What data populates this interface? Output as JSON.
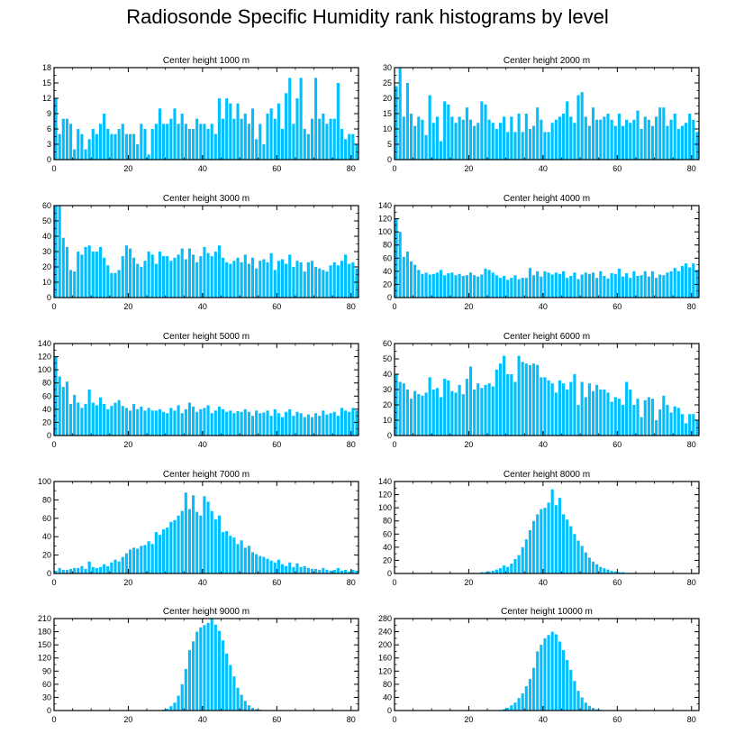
{
  "title": "Radiosonde Specific Humidity rank histograms by level",
  "bar_color": "#00bfff",
  "chart_data": [
    {
      "type": "bar",
      "title": "Center height 1000 m",
      "xlabel": "",
      "ylabel": "",
      "xlim": [
        0,
        82
      ],
      "ylim": [
        0,
        18
      ],
      "xticks": [
        0,
        20,
        40,
        60,
        80
      ],
      "yticks": [
        0,
        3,
        6,
        9,
        12,
        15,
        18
      ],
      "values": [
        12,
        5,
        8,
        8,
        7,
        2,
        6,
        5,
        2,
        4,
        6,
        5,
        7,
        9,
        6,
        5,
        5,
        6,
        7,
        5,
        5,
        5,
        3,
        7,
        6,
        1,
        6,
        7,
        10,
        7,
        7,
        8,
        10,
        7,
        9,
        7,
        6,
        6,
        8,
        7,
        7,
        6,
        7,
        5,
        12,
        8,
        12,
        11,
        8,
        11,
        8,
        9,
        7,
        10,
        4,
        7,
        3,
        9,
        10,
        8,
        11,
        6,
        13,
        16,
        7,
        12,
        16,
        6,
        5,
        8,
        16,
        8,
        9,
        7,
        8,
        8,
        15,
        6,
        4,
        5,
        5,
        3
      ]
    },
    {
      "type": "bar",
      "title": "Center height 2000 m",
      "xlabel": "",
      "ylabel": "",
      "xlim": [
        0,
        82
      ],
      "ylim": [
        0,
        30
      ],
      "xticks": [
        0,
        20,
        40,
        60,
        80
      ],
      "yticks": [
        0,
        5,
        10,
        15,
        20,
        25,
        30
      ],
      "values": [
        24,
        30,
        14,
        25,
        15,
        11,
        14,
        13,
        8,
        21,
        12,
        14,
        6,
        19,
        18,
        14,
        12,
        14,
        13,
        17,
        13,
        11,
        12,
        19,
        18,
        13,
        12,
        10,
        12,
        14,
        9,
        14,
        9,
        15,
        9,
        15,
        10,
        11,
        17,
        13,
        9,
        9,
        12,
        13,
        14,
        15,
        19,
        14,
        12,
        21,
        22,
        14,
        11,
        17,
        13,
        13,
        14,
        15,
        13,
        11,
        15,
        11,
        13,
        12,
        13,
        16,
        10,
        14,
        13,
        11,
        14,
        17,
        17,
        11,
        13,
        15,
        10,
        11,
        12,
        15,
        13,
        9
      ]
    },
    {
      "type": "bar",
      "title": "Center height 3000 m",
      "xlabel": "",
      "ylabel": "",
      "xlim": [
        0,
        82
      ],
      "ylim": [
        0,
        60
      ],
      "xticks": [
        0,
        20,
        40,
        60,
        80
      ],
      "yticks": [
        0,
        10,
        20,
        30,
        40,
        50,
        60
      ],
      "values": [
        60,
        60,
        39,
        33,
        18,
        17,
        30,
        28,
        33,
        34,
        30,
        30,
        33,
        26,
        21,
        16,
        16,
        18,
        27,
        34,
        32,
        26,
        22,
        20,
        24,
        30,
        28,
        22,
        30,
        27,
        27,
        24,
        26,
        28,
        32,
        25,
        32,
        28,
        23,
        27,
        33,
        29,
        27,
        30,
        34,
        26,
        23,
        22,
        24,
        26,
        23,
        28,
        22,
        26,
        19,
        24,
        25,
        23,
        29,
        18,
        24,
        25,
        22,
        28,
        20,
        24,
        23,
        17,
        23,
        24,
        20,
        19,
        18,
        17,
        21,
        23,
        21,
        24,
        28,
        22,
        23,
        19
      ]
    },
    {
      "type": "bar",
      "title": "Center height 4000 m",
      "xlabel": "",
      "ylabel": "",
      "xlim": [
        0,
        82
      ],
      "ylim": [
        0,
        140
      ],
      "xticks": [
        0,
        20,
        40,
        60,
        80
      ],
      "yticks": [
        0,
        20,
        40,
        60,
        80,
        100,
        120,
        140
      ],
      "values": [
        120,
        100,
        62,
        70,
        55,
        50,
        42,
        36,
        38,
        35,
        36,
        38,
        42,
        34,
        37,
        38,
        34,
        36,
        33,
        34,
        38,
        34,
        32,
        35,
        44,
        42,
        38,
        34,
        30,
        33,
        27,
        30,
        34,
        28,
        30,
        30,
        45,
        34,
        40,
        32,
        40,
        38,
        35,
        38,
        36,
        40,
        30,
        33,
        38,
        28,
        35,
        38,
        36,
        38,
        30,
        40,
        33,
        29,
        37,
        36,
        44,
        32,
        37,
        30,
        40,
        33,
        34,
        40,
        32,
        40,
        30,
        35,
        34,
        38,
        40,
        45,
        40,
        48,
        52,
        46,
        52,
        42
      ]
    },
    {
      "type": "bar",
      "title": "Center height 5000 m",
      "xlabel": "",
      "ylabel": "",
      "xlim": [
        0,
        82
      ],
      "ylim": [
        0,
        140
      ],
      "xticks": [
        0,
        20,
        40,
        60,
        80
      ],
      "yticks": [
        0,
        20,
        40,
        60,
        80,
        100,
        120,
        140
      ],
      "values": [
        120,
        90,
        74,
        82,
        48,
        62,
        50,
        42,
        48,
        70,
        50,
        46,
        58,
        48,
        40,
        45,
        50,
        54,
        45,
        42,
        38,
        48,
        40,
        44,
        38,
        42,
        38,
        38,
        40,
        36,
        34,
        42,
        38,
        46,
        34,
        40,
        50,
        44,
        36,
        40,
        42,
        46,
        34,
        38,
        44,
        40,
        36,
        38,
        34,
        37,
        36,
        40,
        36,
        30,
        38,
        34,
        35,
        38,
        30,
        40,
        34,
        28,
        36,
        40,
        30,
        36,
        34,
        28,
        32,
        28,
        34,
        30,
        38,
        32,
        34,
        36,
        30,
        42,
        38,
        36,
        42,
        38
      ]
    },
    {
      "type": "bar",
      "title": "Center height 6000 m",
      "xlabel": "",
      "ylabel": "",
      "xlim": [
        0,
        82
      ],
      "ylim": [
        0,
        60
      ],
      "xticks": [
        0,
        20,
        40,
        60,
        80
      ],
      "yticks": [
        0,
        10,
        20,
        30,
        40,
        50,
        60
      ],
      "values": [
        40,
        35,
        34,
        30,
        24,
        29,
        27,
        26,
        28,
        38,
        30,
        31,
        25,
        37,
        36,
        29,
        28,
        33,
        27,
        37,
        45,
        30,
        34,
        31,
        33,
        34,
        32,
        43,
        47,
        52,
        40,
        40,
        35,
        52,
        48,
        47,
        46,
        47,
        46,
        38,
        38,
        36,
        34,
        28,
        36,
        34,
        30,
        35,
        40,
        20,
        35,
        25,
        34,
        29,
        33,
        30,
        30,
        28,
        22,
        25,
        24,
        20,
        35,
        30,
        20,
        24,
        12,
        23,
        25,
        24,
        10,
        17,
        26,
        20,
        15,
        19,
        18,
        14,
        8,
        14,
        14,
        10
      ]
    },
    {
      "type": "bar",
      "title": "Center height 7000 m",
      "xlabel": "",
      "ylabel": "",
      "xlim": [
        0,
        82
      ],
      "ylim": [
        0,
        100
      ],
      "xticks": [
        0,
        20,
        40,
        60,
        80
      ],
      "yticks": [
        0,
        20,
        40,
        60,
        80,
        100
      ],
      "values": [
        3,
        6,
        4,
        4,
        5,
        6,
        6,
        8,
        5,
        13,
        7,
        6,
        7,
        10,
        8,
        12,
        15,
        13,
        18,
        22,
        26,
        28,
        27,
        30,
        31,
        35,
        32,
        45,
        42,
        48,
        50,
        56,
        58,
        63,
        68,
        88,
        70,
        85,
        67,
        63,
        84,
        78,
        68,
        59,
        63,
        45,
        46,
        41,
        39,
        32,
        36,
        28,
        30,
        23,
        21,
        19,
        18,
        16,
        14,
        12,
        15,
        10,
        8,
        12,
        7,
        11,
        7,
        8,
        6,
        5,
        5,
        4,
        6,
        4,
        3,
        4,
        6,
        3,
        4,
        2,
        4,
        3
      ]
    },
    {
      "type": "bar",
      "title": "Center height 8000 m",
      "xlabel": "",
      "ylabel": "",
      "xlim": [
        0,
        82
      ],
      "ylim": [
        0,
        140
      ],
      "xticks": [
        0,
        20,
        40,
        60,
        80
      ],
      "yticks": [
        0,
        20,
        40,
        60,
        80,
        100,
        120,
        140
      ],
      "values": [
        0,
        0,
        0,
        0,
        0,
        0,
        0,
        0,
        0,
        0,
        0,
        0,
        0,
        0,
        0,
        0,
        0,
        0,
        0,
        0,
        0,
        1,
        1,
        2,
        2,
        3,
        4,
        6,
        8,
        12,
        10,
        15,
        22,
        28,
        40,
        52,
        66,
        80,
        90,
        98,
        100,
        108,
        128,
        104,
        115,
        90,
        82,
        72,
        60,
        50,
        42,
        32,
        24,
        18,
        14,
        10,
        8,
        6,
        4,
        3,
        2,
        2,
        1,
        1,
        1,
        0,
        0,
        0,
        0,
        0,
        0,
        0,
        0,
        0,
        0,
        0,
        0,
        0,
        0,
        0,
        0,
        0
      ]
    },
    {
      "type": "bar",
      "title": "Center height 9000 m",
      "xlabel": "",
      "ylabel": "",
      "xlim": [
        0,
        82
      ],
      "ylim": [
        0,
        210
      ],
      "xticks": [
        0,
        20,
        40,
        60,
        80
      ],
      "yticks": [
        0,
        30,
        60,
        90,
        120,
        150,
        180,
        210
      ],
      "values": [
        0,
        0,
        0,
        0,
        0,
        0,
        0,
        0,
        0,
        0,
        0,
        0,
        0,
        0,
        0,
        0,
        0,
        0,
        0,
        0,
        0,
        0,
        0,
        0,
        0,
        0,
        0,
        0,
        1,
        2,
        4,
        10,
        18,
        34,
        60,
        95,
        138,
        158,
        180,
        190,
        195,
        200,
        210,
        196,
        182,
        160,
        130,
        104,
        78,
        52,
        36,
        22,
        12,
        6,
        3,
        2,
        1,
        1,
        0,
        0,
        0,
        0,
        0,
        0,
        0,
        0,
        0,
        0,
        0,
        0,
        0,
        0,
        0,
        0,
        0,
        0,
        0,
        0,
        0,
        0,
        0,
        0
      ]
    },
    {
      "type": "bar",
      "title": "Center height 10000 m",
      "xlabel": "",
      "ylabel": "",
      "xlim": [
        0,
        82
      ],
      "ylim": [
        0,
        280
      ],
      "xticks": [
        0,
        20,
        40,
        60,
        80
      ],
      "yticks": [
        0,
        40,
        80,
        120,
        160,
        200,
        240,
        280
      ],
      "values": [
        0,
        0,
        0,
        0,
        0,
        0,
        0,
        0,
        0,
        0,
        0,
        0,
        0,
        0,
        0,
        0,
        0,
        0,
        0,
        0,
        0,
        0,
        0,
        0,
        0,
        0,
        0,
        0,
        2,
        4,
        8,
        16,
        24,
        38,
        52,
        74,
        96,
        130,
        180,
        200,
        220,
        230,
        240,
        232,
        210,
        184,
        154,
        124,
        90,
        60,
        40,
        24,
        14,
        8,
        4,
        2,
        1,
        0,
        0,
        0,
        0,
        0,
        0,
        0,
        0,
        0,
        0,
        0,
        0,
        0,
        0,
        0,
        0,
        0,
        0,
        0,
        0,
        0,
        0,
        0,
        0,
        0
      ]
    }
  ]
}
